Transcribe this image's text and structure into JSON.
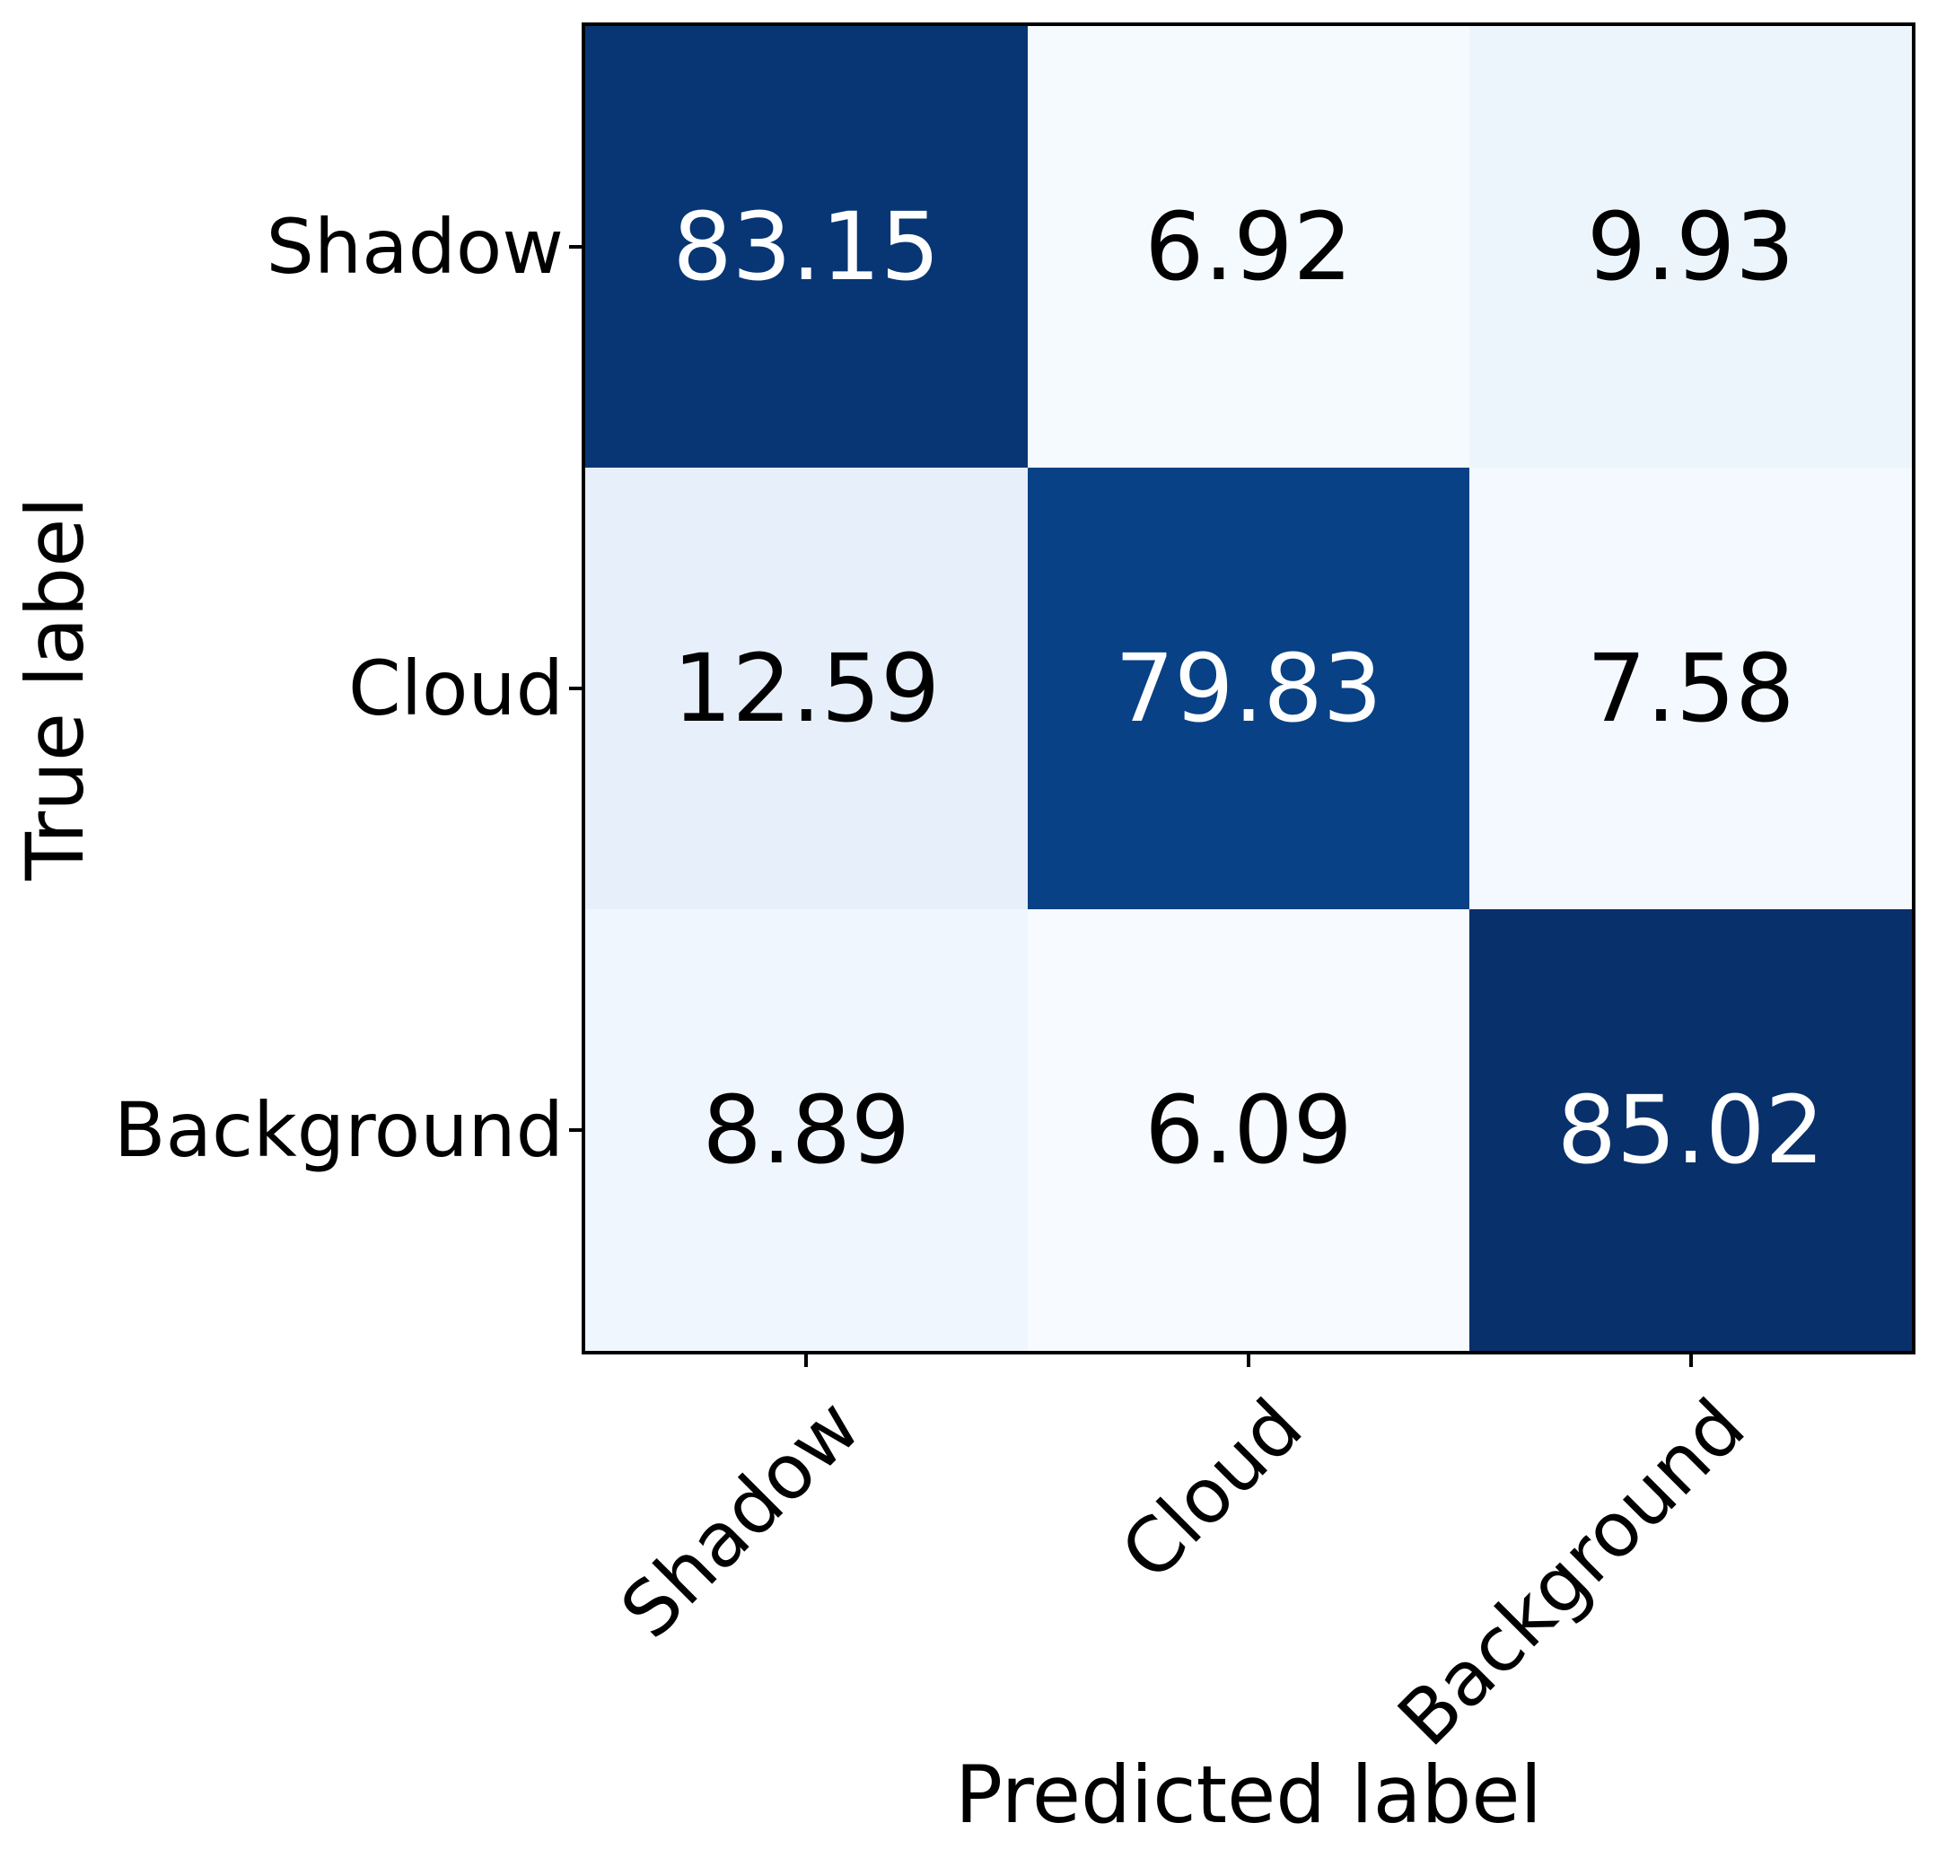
{
  "chart_data": {
    "type": "heatmap",
    "title": "",
    "xlabel": "Predicted label",
    "ylabel": "True label",
    "x_tick_labels": [
      "Shadow",
      "Cloud",
      "Background"
    ],
    "y_tick_labels": [
      "Shadow",
      "Cloud",
      "Background"
    ],
    "matrix": [
      [
        83.15,
        6.92,
        9.93
      ],
      [
        12.59,
        79.83,
        7.58
      ],
      [
        8.89,
        6.09,
        85.02
      ]
    ],
    "value_labels": [
      [
        "83.15",
        "6.92",
        "9.93"
      ],
      [
        "12.59",
        "79.83",
        "7.58"
      ],
      [
        "8.89",
        "6.09",
        "85.02"
      ]
    ],
    "colormap": "Blues",
    "vmin": 6.09,
    "vmax": 85.02,
    "cell_colors": [
      [
        "#083674",
        "#f5fafe",
        "#edf5fc"
      ],
      [
        "#e7f0fa",
        "#084185",
        "#f3f9fe"
      ],
      [
        "#f0f6fd",
        "#f7fbff",
        "#08306b"
      ]
    ],
    "text_colors": [
      [
        "#ffffff",
        "#000000",
        "#000000"
      ],
      [
        "#000000",
        "#ffffff",
        "#000000"
      ],
      [
        "#000000",
        "#000000",
        "#ffffff"
      ]
    ],
    "grid": false,
    "legend": "none",
    "x_tick_rotation_deg": 45
  },
  "colors": {
    "background": "#ffffff",
    "spine": "#000000",
    "tick": "#000000"
  }
}
